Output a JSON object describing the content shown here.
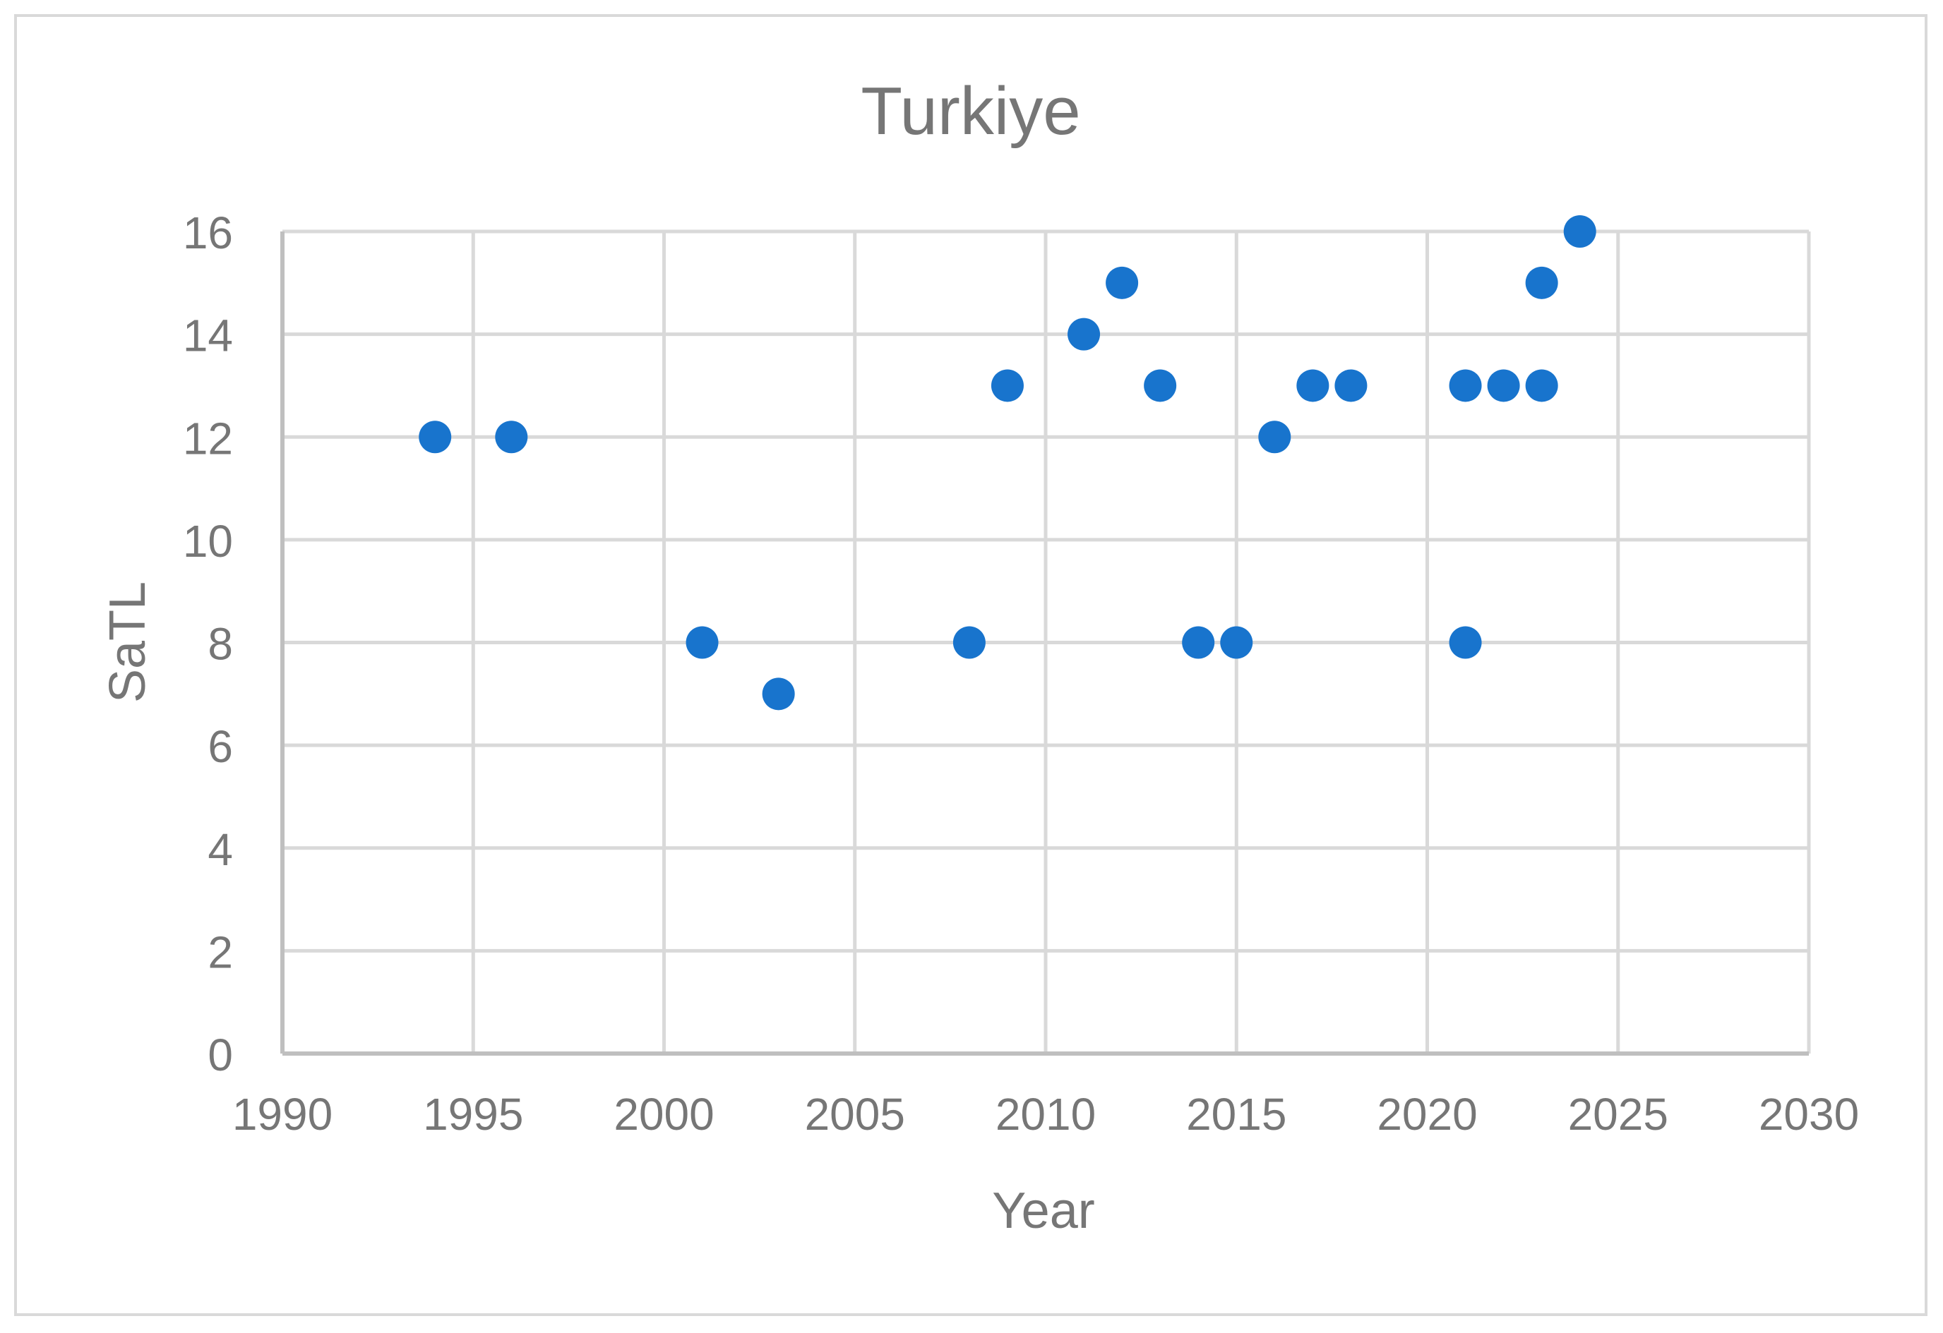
{
  "chart_data": {
    "type": "scatter",
    "title": "Turkiye",
    "xlabel": "Year",
    "ylabel": "SaTL",
    "xlim": [
      1990,
      2030
    ],
    "ylim": [
      0,
      16
    ],
    "xticks": [
      1990,
      1995,
      2000,
      2005,
      2010,
      2015,
      2020,
      2025,
      2030
    ],
    "yticks": [
      0,
      2,
      4,
      6,
      8,
      10,
      12,
      14,
      16
    ],
    "grid": true,
    "legend": "none",
    "marker_color": "#1874CD",
    "points": [
      {
        "x": 1994,
        "y": 12
      },
      {
        "x": 1996,
        "y": 12
      },
      {
        "x": 2001,
        "y": 8
      },
      {
        "x": 2003,
        "y": 7
      },
      {
        "x": 2008,
        "y": 8
      },
      {
        "x": 2009,
        "y": 13
      },
      {
        "x": 2011,
        "y": 14
      },
      {
        "x": 2012,
        "y": 15
      },
      {
        "x": 2013,
        "y": 13
      },
      {
        "x": 2014,
        "y": 8
      },
      {
        "x": 2015,
        "y": 8
      },
      {
        "x": 2016,
        "y": 12
      },
      {
        "x": 2017,
        "y": 13
      },
      {
        "x": 2018,
        "y": 13
      },
      {
        "x": 2021,
        "y": 13
      },
      {
        "x": 2021,
        "y": 8
      },
      {
        "x": 2022,
        "y": 13
      },
      {
        "x": 2023,
        "y": 15
      },
      {
        "x": 2023,
        "y": 13
      },
      {
        "x": 2024,
        "y": 16
      }
    ]
  }
}
